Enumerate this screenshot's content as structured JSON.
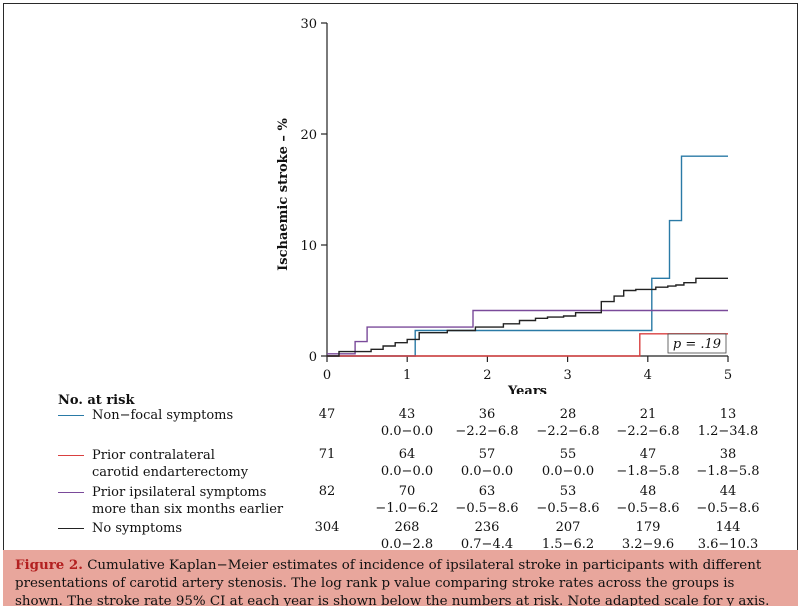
{
  "chart_data": {
    "type": "line",
    "ylabel": "Ischaemic stroke – %",
    "xlabel": "Years",
    "xlim": [
      0,
      5
    ],
    "ylim": [
      0,
      30
    ],
    "x_ticks": [
      "0",
      "1",
      "2",
      "3",
      "4",
      "5"
    ],
    "y_ticks": [
      "0",
      "10",
      "20",
      "30"
    ],
    "annotation": "p = .19",
    "series": [
      {
        "name": "Non−focal symptoms",
        "color": "#2a7aa6",
        "x": [
          0,
          1.1,
          1.1,
          4.05,
          4.05,
          4.27,
          4.27,
          4.42,
          4.42,
          5
        ],
        "y": [
          0,
          0,
          2.3,
          2.3,
          7.0,
          7.0,
          12.2,
          12.2,
          18.0,
          18.0
        ]
      },
      {
        "name": "Prior contralateral carotid endarterectomy",
        "color": "#d94040",
        "x": [
          0,
          3.9,
          3.9,
          5
        ],
        "y": [
          0,
          0,
          2.0,
          2.0
        ]
      },
      {
        "name": "Prior ipsilateral symptoms more than six months earlier",
        "color": "#7a4a9a",
        "x": [
          0,
          0.35,
          0.35,
          0.5,
          0.5,
          1.82,
          1.82,
          5
        ],
        "y": [
          0.2,
          0.2,
          1.3,
          1.3,
          2.6,
          2.6,
          4.1,
          4.1
        ]
      },
      {
        "name": "No symptoms",
        "color": "#222222",
        "x": [
          0,
          0.15,
          0.15,
          0.55,
          0.55,
          0.7,
          0.7,
          0.85,
          0.85,
          1.0,
          1.0,
          1.15,
          1.15,
          1.5,
          1.5,
          1.85,
          1.85,
          2.2,
          2.2,
          2.4,
          2.4,
          2.6,
          2.6,
          2.75,
          2.75,
          2.95,
          2.95,
          3.1,
          3.1,
          3.42,
          3.42,
          3.58,
          3.58,
          3.7,
          3.7,
          3.85,
          3.85,
          4.1,
          4.1,
          4.25,
          4.25,
          4.35,
          4.35,
          4.45,
          4.45,
          4.6,
          4.6,
          5
        ],
        "y": [
          0,
          0,
          0.4,
          0.4,
          0.6,
          0.6,
          0.9,
          0.9,
          1.2,
          1.2,
          1.5,
          1.5,
          2.1,
          2.1,
          2.3,
          2.3,
          2.6,
          2.6,
          2.9,
          2.9,
          3.2,
          3.2,
          3.4,
          3.4,
          3.5,
          3.5,
          3.6,
          3.6,
          3.9,
          3.9,
          4.9,
          4.9,
          5.4,
          5.4,
          5.9,
          5.9,
          6.0,
          6.0,
          6.2,
          6.2,
          6.3,
          6.3,
          6.4,
          6.4,
          6.6,
          6.6,
          7.0,
          7.0
        ]
      }
    ]
  },
  "risk_table": {
    "title": "No. at risk",
    "rows": [
      {
        "label_lines": [
          "Non−focal symptoms",
          ""
        ],
        "color": "#2a7aa6",
        "counts": [
          "47",
          "43",
          "36",
          "28",
          "21",
          "13"
        ],
        "ci": [
          "0.0−0.0",
          "−2.2−6.8",
          "−2.2−6.8",
          "−2.2−6.8",
          "1.2−34.8"
        ]
      },
      {
        "label_lines": [
          "Prior contralateral",
          "carotid endarterectomy"
        ],
        "color": "#d94040",
        "counts": [
          "71",
          "64",
          "57",
          "55",
          "47",
          "38"
        ],
        "ci": [
          "0.0−0.0",
          "0.0−0.0",
          "0.0−0.0",
          "−1.8−5.8",
          "−1.8−5.8"
        ]
      },
      {
        "label_lines": [
          "Prior ipsilateral symptoms",
          "more than six months earlier"
        ],
        "color": "#7a4a9a",
        "counts": [
          "82",
          "70",
          "63",
          "53",
          "48",
          "44"
        ],
        "ci": [
          "−1.0−6.2",
          "−0.5−8.6",
          "−0.5−8.6",
          "−0.5−8.6",
          "−0.5−8.6"
        ]
      },
      {
        "label_lines": [
          "No symptoms",
          ""
        ],
        "color": "#222222",
        "counts": [
          "304",
          "268",
          "236",
          "207",
          "179",
          "144"
        ],
        "ci": [
          "0.0−2.8",
          "0.7−4.4",
          "1.5−6.2",
          "3.2−9.6",
          "3.6−10.3"
        ]
      }
    ]
  },
  "caption": {
    "figure_label": "Figure 2.",
    "text": "Cumulative Kaplan−Meier estimates of incidence of ipsilateral stroke in participants with different presentations of carotid artery stenosis. The log rank p value comparing stroke rates across the groups is shown. The stroke rate 95% CI at each year is shown below the numbers at risk. Note adapted scale for y axis."
  }
}
